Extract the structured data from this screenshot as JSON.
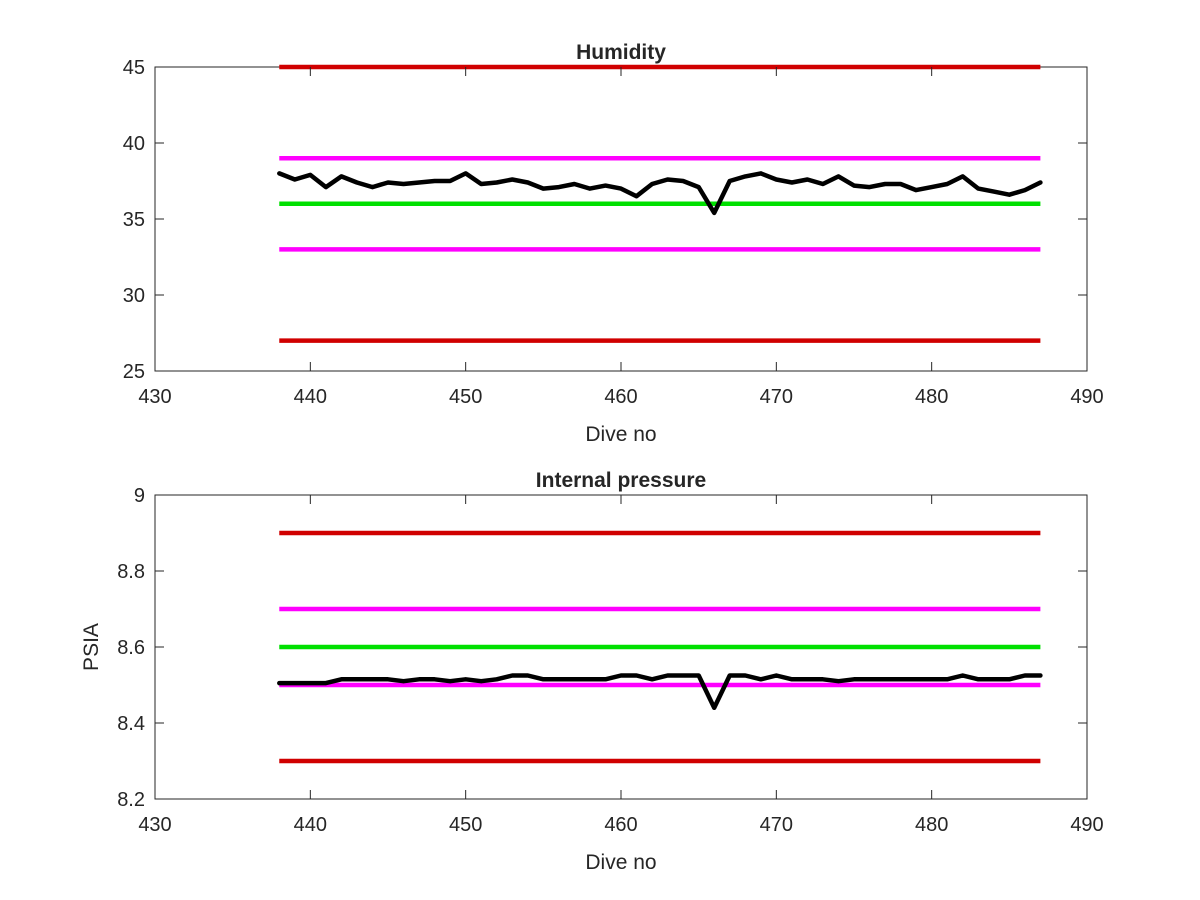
{
  "chart_data": [
    {
      "type": "line",
      "title": "Humidity",
      "xlabel": "Dive no",
      "ylabel": "",
      "xlim": [
        430,
        490
      ],
      "ylim": [
        25,
        45
      ],
      "x_ticks": [
        "430",
        "440",
        "450",
        "460",
        "470",
        "480",
        "490"
      ],
      "y_ticks": [
        "25",
        "30",
        "35",
        "40",
        "45"
      ],
      "grid": false,
      "reference_lines": [
        {
          "y": 45,
          "x_range": [
            438,
            487
          ],
          "color": "#d00000"
        },
        {
          "y": 39,
          "x_range": [
            438,
            487
          ],
          "color": "#ff00ff"
        },
        {
          "y": 36,
          "x_range": [
            438,
            487
          ],
          "color": "#00e000"
        },
        {
          "y": 33,
          "x_range": [
            438,
            487
          ],
          "color": "#ff00ff"
        },
        {
          "y": 27,
          "x_range": [
            438,
            487
          ],
          "color": "#d00000"
        }
      ],
      "series": [
        {
          "color": "#000000",
          "x": [
            438,
            439,
            440,
            441,
            442,
            443,
            444,
            445,
            446,
            447,
            448,
            449,
            450,
            451,
            452,
            453,
            454,
            455,
            456,
            457,
            458,
            459,
            460,
            461,
            462,
            463,
            464,
            465,
            466,
            467,
            468,
            469,
            470,
            471,
            472,
            473,
            474,
            475,
            476,
            477,
            478,
            479,
            480,
            481,
            482,
            483,
            484,
            485,
            486,
            487
          ],
          "values": [
            38.0,
            37.6,
            37.9,
            37.1,
            37.8,
            37.4,
            37.1,
            37.4,
            37.3,
            37.4,
            37.5,
            37.5,
            38.0,
            37.3,
            37.4,
            37.6,
            37.4,
            37.0,
            37.1,
            37.3,
            37.0,
            37.2,
            37.0,
            36.5,
            37.3,
            37.6,
            37.5,
            37.1,
            35.4,
            37.5,
            37.8,
            38.0,
            37.6,
            37.4,
            37.6,
            37.3,
            37.8,
            37.2,
            37.1,
            37.3,
            37.3,
            36.9,
            37.1,
            37.3,
            37.8,
            37.0,
            36.8,
            36.6,
            36.9,
            37.4
          ]
        }
      ]
    },
    {
      "type": "line",
      "title": "Internal pressure",
      "xlabel": "Dive no",
      "ylabel": "PSIA",
      "xlim": [
        430,
        490
      ],
      "ylim": [
        8.2,
        9
      ],
      "x_ticks": [
        "430",
        "440",
        "450",
        "460",
        "470",
        "480",
        "490"
      ],
      "y_ticks": [
        "8.2",
        "8.4",
        "8.6",
        "8.8",
        "9"
      ],
      "grid": false,
      "reference_lines": [
        {
          "y": 8.9,
          "x_range": [
            438,
            487
          ],
          "color": "#d00000"
        },
        {
          "y": 8.7,
          "x_range": [
            438,
            487
          ],
          "color": "#ff00ff"
        },
        {
          "y": 8.6,
          "x_range": [
            438,
            487
          ],
          "color": "#00e000"
        },
        {
          "y": 8.5,
          "x_range": [
            438,
            487
          ],
          "color": "#ff00ff"
        },
        {
          "y": 8.3,
          "x_range": [
            438,
            487
          ],
          "color": "#d00000"
        }
      ],
      "series": [
        {
          "color": "#000000",
          "x": [
            438,
            439,
            440,
            441,
            442,
            443,
            444,
            445,
            446,
            447,
            448,
            449,
            450,
            451,
            452,
            453,
            454,
            455,
            456,
            457,
            458,
            459,
            460,
            461,
            462,
            463,
            464,
            465,
            466,
            467,
            468,
            469,
            470,
            471,
            472,
            473,
            474,
            475,
            476,
            477,
            478,
            479,
            480,
            481,
            482,
            483,
            484,
            485,
            486,
            487
          ],
          "values": [
            8.505,
            8.505,
            8.505,
            8.505,
            8.515,
            8.515,
            8.515,
            8.515,
            8.51,
            8.515,
            8.515,
            8.51,
            8.515,
            8.51,
            8.515,
            8.525,
            8.525,
            8.515,
            8.515,
            8.515,
            8.515,
            8.515,
            8.525,
            8.525,
            8.515,
            8.525,
            8.525,
            8.525,
            8.44,
            8.525,
            8.525,
            8.515,
            8.525,
            8.515,
            8.515,
            8.515,
            8.51,
            8.515,
            8.515,
            8.515,
            8.515,
            8.515,
            8.515,
            8.515,
            8.525,
            8.515,
            8.515,
            8.515,
            8.525,
            8.525
          ]
        }
      ]
    }
  ]
}
